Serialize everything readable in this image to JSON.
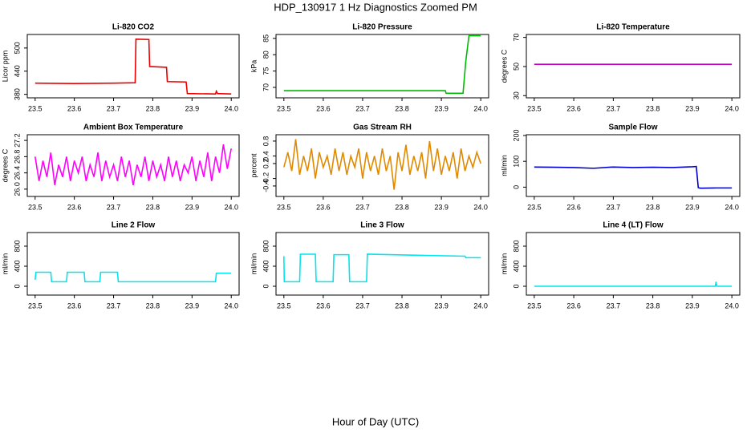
{
  "title": "HDP_130917  1 Hz Diagnostics Zoomed PM",
  "xlabel": "Hour of Day (UTC)",
  "chart_data": [
    {
      "type": "line",
      "title": "Li-820 CO2",
      "ylabel": "Licor ppm",
      "color": "#ee0000",
      "x": [
        23.5,
        23.6,
        23.7,
        23.755,
        23.757,
        23.79,
        23.792,
        23.835,
        23.837,
        23.885,
        23.888,
        23.96,
        23.962,
        23.965,
        24.0
      ],
      "values": [
        409,
        408,
        409,
        410,
        523,
        522,
        452,
        450,
        413,
        412,
        382,
        381,
        388,
        382,
        381
      ],
      "xlim": [
        23.48,
        24.02
      ],
      "ylim": [
        371,
        535
      ],
      "xticks": [
        23.5,
        23.6,
        23.7,
        23.8,
        23.9,
        {
          "value": 24,
          "label": "24.0"
        }
      ],
      "yticks": [
        380,
        440,
        500
      ]
    },
    {
      "type": "line",
      "title": "Li-820 Pressure",
      "ylabel": "kPa",
      "color": "#00bb00",
      "x": [
        23.5,
        23.7,
        23.91,
        23.912,
        23.955,
        23.962,
        23.97,
        24.0
      ],
      "values": [
        69,
        69,
        69,
        68.2,
        68.2,
        78,
        85.8,
        85.8
      ],
      "xlim": [
        23.48,
        24.02
      ],
      "ylim": [
        66.8,
        86.2
      ],
      "xticks": [
        23.5,
        23.6,
        23.7,
        23.8,
        23.9,
        {
          "value": 24,
          "label": "24.0"
        }
      ],
      "yticks": [
        70,
        75,
        80,
        85
      ]
    },
    {
      "type": "line",
      "title": "Li-820 Temperature",
      "ylabel": "degrees C",
      "color": "#c000c0",
      "x": [
        23.5,
        24.0
      ],
      "values": [
        51.5,
        51.5
      ],
      "xlim": [
        23.48,
        24.02
      ],
      "ylim": [
        28.5,
        72
      ],
      "xticks": [
        23.5,
        23.6,
        23.7,
        23.8,
        23.9,
        {
          "value": 24,
          "label": "24.0"
        }
      ],
      "yticks": [
        30,
        50,
        70
      ]
    },
    {
      "type": "line",
      "title": "Ambient Box Temperature",
      "ylabel": "degrees C",
      "color": "#ff00ff",
      "x": [
        23.5,
        23.51,
        23.52,
        23.53,
        23.54,
        23.55,
        23.56,
        23.57,
        23.58,
        23.59,
        23.6,
        23.61,
        23.62,
        23.63,
        23.64,
        23.65,
        23.66,
        23.67,
        23.68,
        23.69,
        23.7,
        23.71,
        23.72,
        23.73,
        23.74,
        23.75,
        23.76,
        23.77,
        23.78,
        23.79,
        23.8,
        23.81,
        23.82,
        23.83,
        23.84,
        23.85,
        23.86,
        23.87,
        23.88,
        23.89,
        23.9,
        23.91,
        23.92,
        23.93,
        23.94,
        23.95,
        23.96,
        23.97,
        23.98,
        23.99,
        24.0
      ],
      "values": [
        26.8,
        26.2,
        26.7,
        26.3,
        26.9,
        26.1,
        26.6,
        26.3,
        26.8,
        26.2,
        26.7,
        26.4,
        26.8,
        26.2,
        26.6,
        26.3,
        26.9,
        26.2,
        26.7,
        26.3,
        26.6,
        26.2,
        26.8,
        26.3,
        26.7,
        26.1,
        26.6,
        26.3,
        26.8,
        26.2,
        26.7,
        26.3,
        26.6,
        26.2,
        26.8,
        26.3,
        26.7,
        26.2,
        26.6,
        26.4,
        26.8,
        26.2,
        26.7,
        26.3,
        26.9,
        26.2,
        26.8,
        26.4,
        27.1,
        26.5,
        27.0
      ],
      "xlim": [
        23.48,
        24.02
      ],
      "ylim": [
        25.82,
        27.34
      ],
      "xticks": [
        23.5,
        23.6,
        23.7,
        23.8,
        23.9,
        {
          "value": 24,
          "label": "24.0"
        }
      ],
      "yticks": [
        {
          "value": 26,
          "label": "26.0"
        },
        26.4,
        26.8,
        27.2
      ]
    },
    {
      "type": "line",
      "title": "Gas Stream RH",
      "ylabel": "percent",
      "color": "#e08a00",
      "x": [
        23.5,
        23.51,
        23.52,
        23.53,
        23.54,
        23.55,
        23.56,
        23.57,
        23.58,
        23.59,
        23.6,
        23.61,
        23.62,
        23.63,
        23.64,
        23.65,
        23.66,
        23.67,
        23.68,
        23.69,
        23.7,
        23.71,
        23.72,
        23.73,
        23.74,
        23.75,
        23.76,
        23.77,
        23.78,
        23.79,
        23.8,
        23.81,
        23.82,
        23.83,
        23.84,
        23.85,
        23.86,
        23.87,
        23.88,
        23.89,
        23.9,
        23.91,
        23.92,
        23.93,
        23.94,
        23.95,
        23.96,
        23.97,
        23.98,
        23.99,
        24.0
      ],
      "values": [
        0.1,
        0.5,
        0.0,
        0.85,
        -0.1,
        0.4,
        0.0,
        0.6,
        -0.2,
        0.5,
        0.1,
        0.4,
        -0.1,
        0.6,
        0.0,
        0.5,
        -0.1,
        0.4,
        0.1,
        0.6,
        -0.2,
        0.5,
        0.0,
        0.4,
        -0.1,
        0.6,
        0.0,
        0.4,
        -0.5,
        0.5,
        0.0,
        0.7,
        -0.1,
        0.4,
        0.0,
        0.5,
        -0.2,
        0.8,
        0.0,
        0.6,
        -0.1,
        0.4,
        0.0,
        0.5,
        -0.2,
        0.6,
        0.0,
        0.4,
        0.1,
        0.5,
        0.2
      ],
      "xlim": [
        23.48,
        24.02
      ],
      "ylim": [
        -0.68,
        0.97
      ],
      "xticks": [
        23.5,
        23.6,
        23.7,
        23.8,
        23.9,
        {
          "value": 24,
          "label": "24.0"
        }
      ],
      "yticks": [
        -0.4,
        -0.2,
        0.2,
        0.4,
        0.8
      ]
    },
    {
      "type": "line",
      "title": "Sample Flow",
      "ylabel": "ml/min",
      "color": "#0000cc",
      "x": [
        23.5,
        23.55,
        23.6,
        23.65,
        23.7,
        23.75,
        23.8,
        23.85,
        23.9,
        23.91,
        23.915,
        23.92,
        23.96,
        24.0
      ],
      "values": [
        78,
        77,
        76,
        73,
        78,
        76,
        77,
        76,
        79,
        80,
        -2,
        -4,
        -3,
        -3
      ],
      "xlim": [
        23.48,
        24.02
      ],
      "ylim": [
        -36,
        203
      ],
      "xticks": [
        23.5,
        23.6,
        23.7,
        23.8,
        23.9,
        {
          "value": 24,
          "label": "24.0"
        }
      ],
      "yticks": [
        0,
        100,
        200
      ]
    },
    {
      "type": "line",
      "title": "Line 2 Flow",
      "ylabel": "ml/min",
      "color": "#00e5ee",
      "x": [
        23.5,
        23.502,
        23.54,
        23.542,
        23.58,
        23.582,
        23.625,
        23.627,
        23.665,
        23.667,
        23.71,
        23.712,
        23.96,
        23.962,
        24.0
      ],
      "values": [
        130,
        280,
        280,
        90,
        90,
        280,
        280,
        90,
        90,
        280,
        280,
        90,
        90,
        260,
        260
      ],
      "xlim": [
        23.48,
        24.02
      ],
      "ylim": [
        -176,
        1072
      ],
      "xticks": [
        23.5,
        23.6,
        23.7,
        23.8,
        23.9,
        {
          "value": 24,
          "label": "24.0"
        }
      ],
      "yticks": [
        0,
        400,
        800
      ]
    },
    {
      "type": "line",
      "title": "Line 3 Flow",
      "ylabel": "ml/min",
      "color": "#00e5ee",
      "x": [
        23.5,
        23.501,
        23.54,
        23.542,
        23.58,
        23.582,
        23.625,
        23.627,
        23.665,
        23.667,
        23.71,
        23.712,
        23.96,
        23.962,
        24.0
      ],
      "values": [
        600,
        90,
        90,
        640,
        640,
        90,
        90,
        630,
        630,
        90,
        90,
        640,
        600,
        570,
        570
      ],
      "xlim": [
        23.48,
        24.02
      ],
      "ylim": [
        -176,
        1072
      ],
      "xticks": [
        23.5,
        23.6,
        23.7,
        23.8,
        23.9,
        {
          "value": 24,
          "label": "24.0"
        }
      ],
      "yticks": [
        0,
        400,
        800
      ]
    },
    {
      "type": "line",
      "title": "Line 4 (LT) Flow",
      "ylabel": "ml/min",
      "color": "#00e5ee",
      "x": [
        23.5,
        23.958,
        23.96,
        23.962,
        24.0
      ],
      "values": [
        0,
        0,
        90,
        0,
        0
      ],
      "xlim": [
        23.48,
        24.02
      ],
      "ylim": [
        -176,
        1072
      ],
      "xticks": [
        23.5,
        23.6,
        23.7,
        23.8,
        23.9,
        {
          "value": 24,
          "label": "24.0"
        }
      ],
      "yticks": [
        0,
        400,
        800
      ]
    }
  ]
}
